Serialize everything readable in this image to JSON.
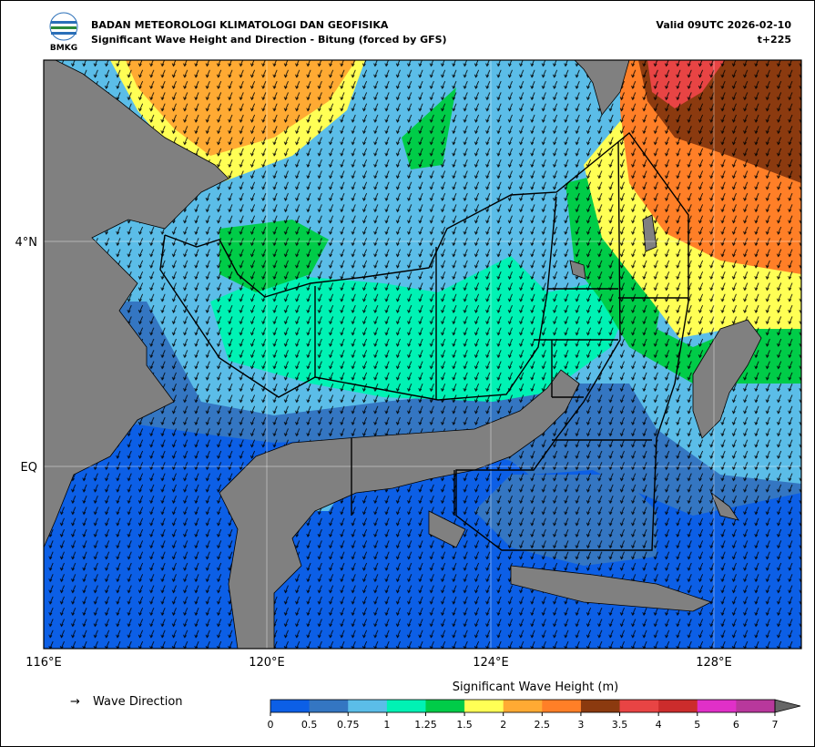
{
  "header": {
    "logo_text": "BMKG",
    "title": "BADAN METEOROLOGI KLIMATOLOGI DAN GEOFISIKA",
    "subtitle": "Significant Wave Height and Direction - Bitung (forced by GFS)",
    "valid": "Valid 09UTC 2026-02-10",
    "step": "t+225"
  },
  "map": {
    "lat_labels": [
      "4°N",
      "EQ"
    ],
    "lon_labels": [
      "116°E",
      "120°E",
      "124°E",
      "128°E"
    ]
  },
  "legend": {
    "arrow": "→",
    "label": "Wave Direction"
  },
  "colorbar": {
    "title": "Significant Wave Height (m)",
    "ticks": [
      0,
      0.5,
      0.75,
      1,
      1.25,
      1.5,
      2,
      2.5,
      3,
      3.5,
      4,
      5,
      6,
      7
    ],
    "colors": [
      "#0c5fe6",
      "#3476c2",
      "#5bbde8",
      "#00f2b4",
      "#00cc48",
      "#ffff55",
      "#ffaa33",
      "#ff7f27",
      "#8b3a0f",
      "#e84444",
      "#cc2c2c",
      "#e030c8",
      "#b8389c"
    ]
  }
}
